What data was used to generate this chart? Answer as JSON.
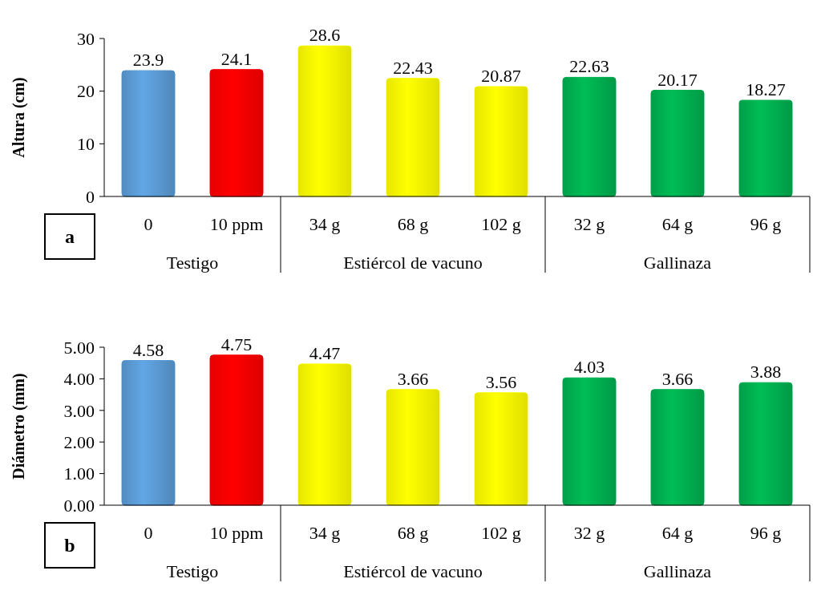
{
  "chart_data": [
    {
      "type": "bar",
      "ylabel": "Altura (cm)",
      "categories": [
        "0",
        "10 ppm",
        "34 g",
        "68 g",
        "102 g",
        "32 g",
        "64 g",
        "96 g"
      ],
      "values": [
        23.9,
        24.1,
        28.6,
        22.43,
        20.87,
        22.63,
        20.17,
        18.27
      ],
      "colors": [
        "#5b9bd5",
        "#ff0000",
        "#ffff00",
        "#ffff00",
        "#ffff00",
        "#00b050",
        "#00b050",
        "#00b050"
      ],
      "ylim": [
        0,
        30
      ],
      "yticks": [
        0,
        10,
        20,
        30
      ],
      "data_labels": true,
      "grid": false,
      "annotations": [
        "a",
        "Testigo",
        "Estiércol de vacuno",
        "Gallinaza"
      ]
    },
    {
      "type": "bar",
      "ylabel": "Diámetro (mm)",
      "categories": [
        "0",
        "10 ppm",
        "34 g",
        "68 g",
        "102 g",
        "32 g",
        "64 g",
        "96 g"
      ],
      "values": [
        4.58,
        4.75,
        4.47,
        3.66,
        3.56,
        4.03,
        3.66,
        3.88
      ],
      "colors": [
        "#5b9bd5",
        "#ff0000",
        "#ffff00",
        "#ffff00",
        "#ffff00",
        "#00b050",
        "#00b050",
        "#00b050"
      ],
      "ylim": [
        0,
        5
      ],
      "yticks": [
        {
          "value": 0,
          "label": "0.00"
        },
        {
          "value": 1,
          "label": "1.00"
        },
        {
          "value": 2,
          "label": "2.00"
        },
        {
          "value": 3,
          "label": "3.00"
        },
        {
          "value": 4,
          "label": "4.00"
        },
        {
          "value": 5,
          "label": "5.00"
        }
      ],
      "data_labels": true,
      "grid": false,
      "annotations": [
        "b",
        "Testigo",
        "Estiércol de vacuno",
        "Gallinaza"
      ]
    }
  ]
}
